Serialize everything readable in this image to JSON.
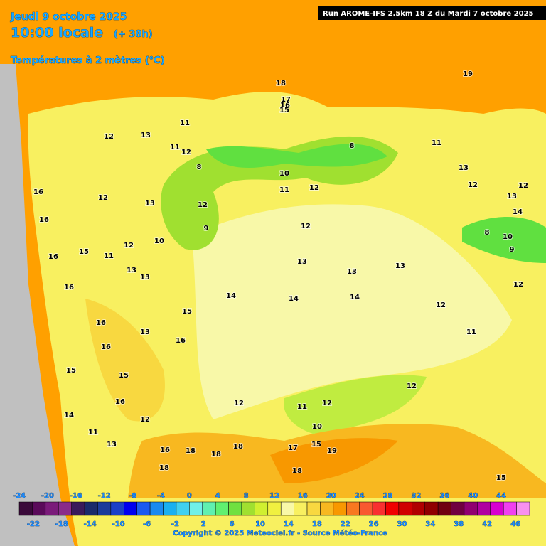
{
  "header": {
    "date": "Jeudi 9 octobre 2025",
    "time": "10:00 locale",
    "lead": "(+ 38h)",
    "field": "Températures à 2 mètres (°C)",
    "run": "Run AROME-IFS 2.5km 18 Z du Mardi 7 octobre 2025"
  },
  "legend": {
    "ticks_top": [
      -24,
      -20,
      -16,
      -12,
      -8,
      -4,
      0,
      4,
      8,
      12,
      16,
      20,
      24,
      28,
      32,
      36,
      40,
      44
    ],
    "ticks_bottom": [
      -22,
      -18,
      -14,
      -10,
      -6,
      -2,
      2,
      6,
      10,
      14,
      18,
      22,
      26,
      30,
      34,
      38,
      42,
      46
    ],
    "colors": [
      "#3a0a3a",
      "#5a0a5a",
      "#7a1a7a",
      "#8a2a8a",
      "#3a1a5a",
      "#1a2a6a",
      "#1a3a9a",
      "#1a40c8",
      "#0000f0",
      "#1a5af0",
      "#1a8af0",
      "#1ab0f0",
      "#40d0f0",
      "#70f0e8",
      "#60f0b0",
      "#60f070",
      "#70e040",
      "#a0e030",
      "#d0f030",
      "#f0f040",
      "#f8f8a8",
      "#f8f060",
      "#f8d840",
      "#f8b820",
      "#f89800",
      "#f87820",
      "#f85830",
      "#f83030",
      "#f00000",
      "#d00000",
      "#b00000",
      "#900000",
      "#700010",
      "#700040",
      "#900070",
      "#b000a0",
      "#d800d0",
      "#f040f0",
      "#f890f0"
    ]
  },
  "map": {
    "contour_labels": [
      18,
      19,
      17,
      16,
      15,
      12,
      13,
      11,
      11,
      12,
      8,
      10,
      12,
      11,
      8,
      11,
      13,
      12,
      13,
      12,
      14,
      16,
      12,
      13,
      12,
      16,
      12,
      10,
      12,
      9,
      8,
      10,
      9,
      16,
      15,
      11,
      13,
      13,
      13,
      13,
      13,
      16,
      14,
      14,
      14,
      12,
      12,
      15,
      16,
      13,
      16,
      16,
      11,
      15,
      15,
      12,
      16,
      12,
      11,
      12,
      14,
      12,
      11,
      13,
      10,
      18,
      18,
      18,
      17,
      15,
      19,
      16,
      18,
      18,
      15
    ]
  },
  "footer": {
    "copyright": "Copyright © 2025 Meteociel.fr - Source Météo-France"
  }
}
